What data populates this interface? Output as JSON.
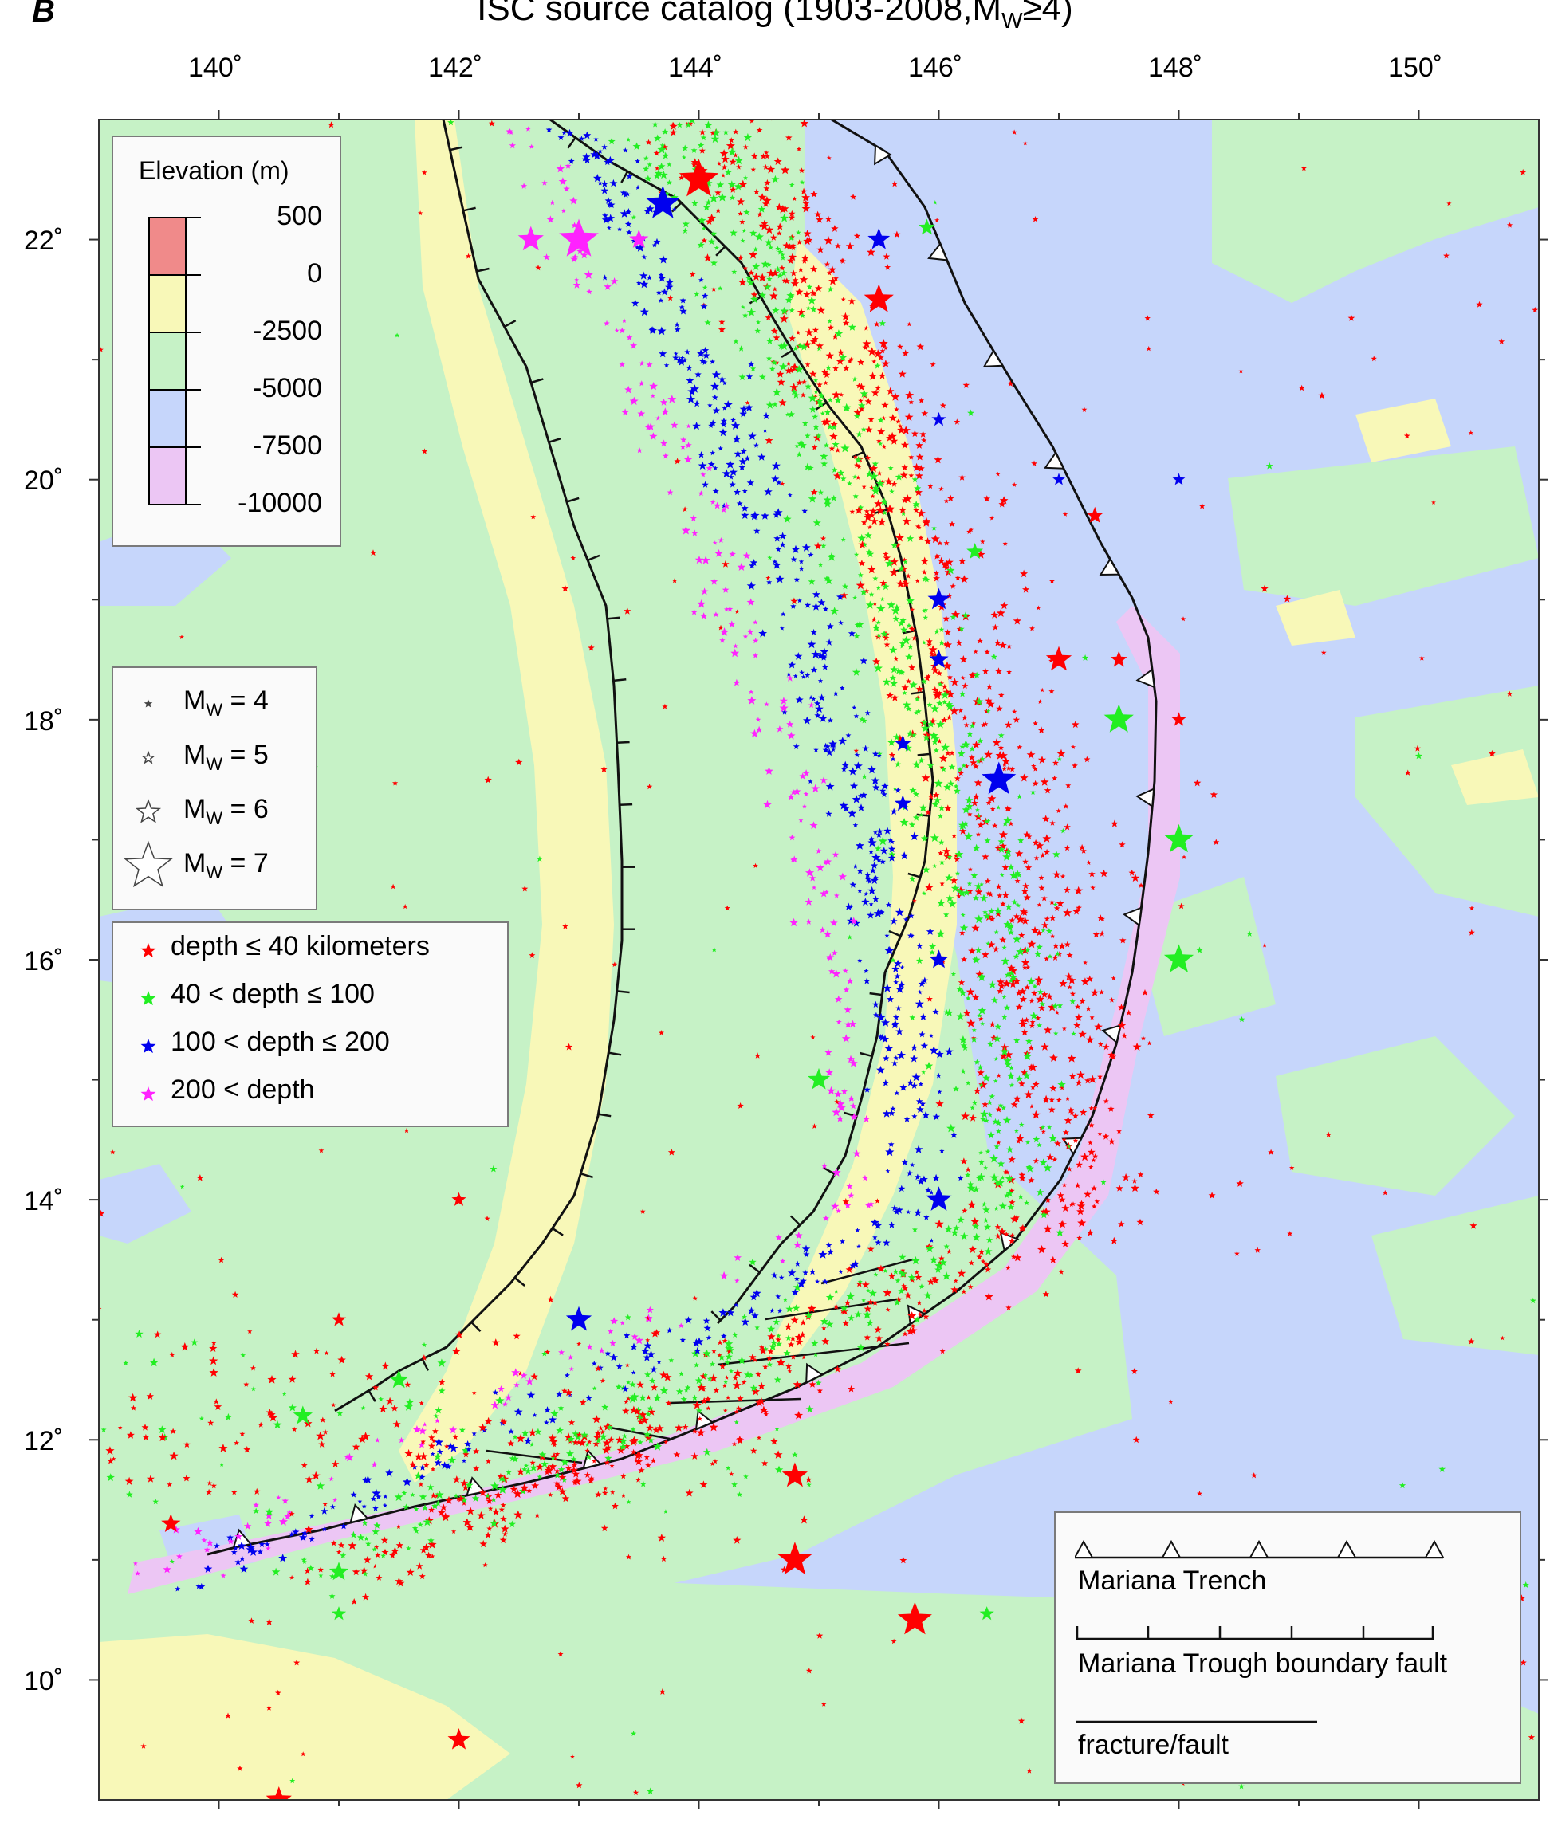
{
  "panel_label": "B",
  "title": "ISC source catalog (1903-2008,M",
  "title_sub": "W",
  "title_tail": "≥4)",
  "lon_ticks": [
    "140˚",
    "142˚",
    "144˚",
    "146˚",
    "148˚",
    "150˚"
  ],
  "lat_ticks": [
    "22˚",
    "20˚",
    "18˚",
    "16˚",
    "14˚",
    "12˚",
    "10˚"
  ],
  "elevation_legend": {
    "title": "Elevation (m)",
    "levels": [
      "500",
      "0",
      "-2500",
      "-5000",
      "-7500",
      "-10000"
    ],
    "colors": [
      "#f08a8a",
      "#f8f8b8",
      "#c6f2c6",
      "#c6d6fb",
      "#ecc6f4"
    ]
  },
  "magnitude_legend": {
    "items": [
      {
        "prefix": "M",
        "sub": "W",
        "suffix": " = 4",
        "mw": 4
      },
      {
        "prefix": "M",
        "sub": "W",
        "suffix": " = 5",
        "mw": 5
      },
      {
        "prefix": "M",
        "sub": "W",
        "suffix": " = 6",
        "mw": 6
      },
      {
        "prefix": "M",
        "sub": "W",
        "suffix": " = 7",
        "mw": 7
      }
    ]
  },
  "depth_legend": {
    "items": [
      {
        "label": "depth ≤ 40 kilometers",
        "color": "#ff0000"
      },
      {
        "label": "40 < depth ≤ 100",
        "color": "#22ee22"
      },
      {
        "label": "100 < depth ≤ 200",
        "color": "#0000ee"
      },
      {
        "label": "200 < depth",
        "color": "#ff22ff"
      }
    ]
  },
  "feature_legend": {
    "trench": "Mariana Trench",
    "trough": "Mariana Trough boundary fault",
    "fracture": "fracture/fault"
  },
  "map_extent": {
    "lon": [
      139,
      151
    ],
    "lat": [
      9,
      23
    ]
  },
  "large_events": [
    {
      "lon": 144.0,
      "lat": 22.5,
      "mw": 6.8,
      "depth": "shallow"
    },
    {
      "lon": 143.7,
      "lat": 22.3,
      "mw": 6.6,
      "depth": "intermediate"
    },
    {
      "lon": 145.5,
      "lat": 22.0,
      "mw": 6.0,
      "depth": "intermediate"
    },
    {
      "lon": 145.5,
      "lat": 21.5,
      "mw": 6.4,
      "depth": "shallow"
    },
    {
      "lon": 142.6,
      "lat": 22.0,
      "mw": 6.2,
      "depth": "deep"
    },
    {
      "lon": 143.0,
      "lat": 22.0,
      "mw": 6.8,
      "depth": "deep"
    },
    {
      "lon": 143.5,
      "lat": 22.0,
      "mw": 5.8,
      "depth": "deep"
    },
    {
      "lon": 145.9,
      "lat": 22.1,
      "mw": 5.6,
      "depth": "intermediate-shallow"
    },
    {
      "lon": 146.0,
      "lat": 20.5,
      "mw": 5.4,
      "depth": "intermediate"
    },
    {
      "lon": 146.0,
      "lat": 19.0,
      "mw": 6.0,
      "depth": "intermediate"
    },
    {
      "lon": 146.0,
      "lat": 18.5,
      "mw": 5.8,
      "depth": "intermediate"
    },
    {
      "lon": 146.5,
      "lat": 17.5,
      "mw": 6.6,
      "depth": "intermediate"
    },
    {
      "lon": 147.0,
      "lat": 18.5,
      "mw": 6.2,
      "depth": "shallow"
    },
    {
      "lon": 147.5,
      "lat": 18.5,
      "mw": 5.6,
      "depth": "shallow"
    },
    {
      "lon": 147.5,
      "lat": 18.0,
      "mw": 6.4,
      "depth": "intermediate-shallow"
    },
    {
      "lon": 148.0,
      "lat": 18.0,
      "mw": 5.4,
      "depth": "shallow"
    },
    {
      "lon": 148.0,
      "lat": 17.0,
      "mw": 6.4,
      "depth": "intermediate-shallow"
    },
    {
      "lon": 148.0,
      "lat": 16.0,
      "mw": 6.4,
      "depth": "intermediate-shallow"
    },
    {
      "lon": 146.0,
      "lat": 16.0,
      "mw": 5.8,
      "depth": "intermediate"
    },
    {
      "lon": 145.7,
      "lat": 17.8,
      "mw": 5.6,
      "depth": "intermediate"
    },
    {
      "lon": 145.7,
      "lat": 17.3,
      "mw": 5.6,
      "depth": "intermediate"
    },
    {
      "lon": 146.3,
      "lat": 19.4,
      "mw": 5.6,
      "depth": "intermediate-shallow"
    },
    {
      "lon": 145.0,
      "lat": 15.0,
      "mw": 6.0,
      "depth": "intermediate-shallow"
    },
    {
      "lon": 146.0,
      "lat": 14.0,
      "mw": 6.2,
      "depth": "intermediate"
    },
    {
      "lon": 143.0,
      "lat": 13.0,
      "mw": 6.2,
      "depth": "intermediate"
    },
    {
      "lon": 141.5,
      "lat": 12.5,
      "mw": 5.8,
      "depth": "intermediate-shallow"
    },
    {
      "lon": 140.7,
      "lat": 12.2,
      "mw": 5.8,
      "depth": "intermediate-shallow"
    },
    {
      "lon": 139.6,
      "lat": 11.3,
      "mw": 5.8,
      "depth": "shallow"
    },
    {
      "lon": 144.8,
      "lat": 11.7,
      "mw": 6.2,
      "depth": "shallow"
    },
    {
      "lon": 144.8,
      "lat": 11.0,
      "mw": 6.6,
      "depth": "shallow"
    },
    {
      "lon": 145.8,
      "lat": 10.5,
      "mw": 6.6,
      "depth": "shallow"
    },
    {
      "lon": 142.0,
      "lat": 9.5,
      "mw": 6.0,
      "depth": "shallow"
    },
    {
      "lon": 140.5,
      "lat": 9.0,
      "mw": 6.2,
      "depth": "shallow"
    },
    {
      "lon": 141.0,
      "lat": 10.9,
      "mw": 5.8,
      "depth": "intermediate-shallow"
    },
    {
      "lon": 141.0,
      "lat": 10.55,
      "mw": 5.4,
      "depth": "intermediate-shallow"
    },
    {
      "lon": 146.4,
      "lat": 10.55,
      "mw": 5.4,
      "depth": "intermediate-shallow"
    },
    {
      "lon": 142.0,
      "lat": 14.0,
      "mw": 5.4,
      "depth": "shallow"
    },
    {
      "lon": 141.0,
      "lat": 13.0,
      "mw": 5.4,
      "depth": "shallow"
    },
    {
      "lon": 147.0,
      "lat": 20.0,
      "mw": 5.2,
      "depth": "intermediate"
    },
    {
      "lon": 148.0,
      "lat": 20.0,
      "mw": 5.2,
      "depth": "intermediate"
    },
    {
      "lon": 147.3,
      "lat": 19.7,
      "mw": 5.6,
      "depth": "shallow"
    }
  ]
}
